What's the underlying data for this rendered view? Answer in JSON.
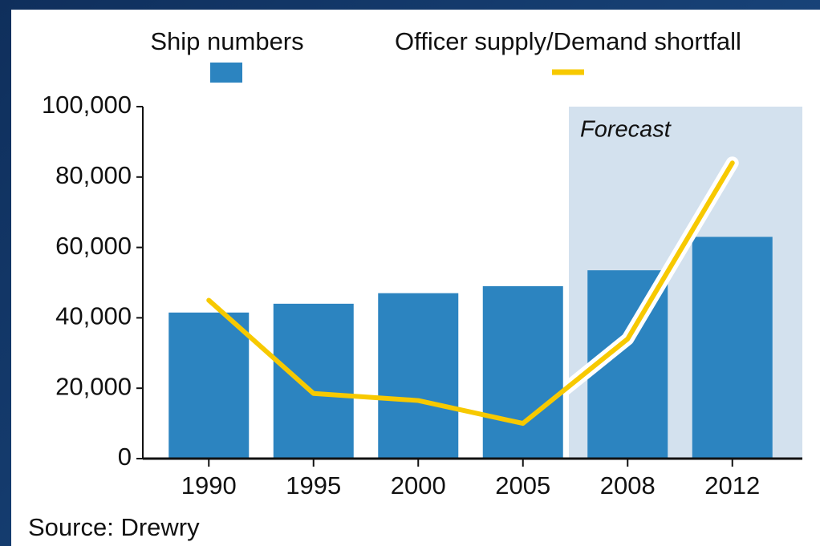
{
  "chart_data": {
    "type": "bar",
    "legend": [
      "Ship numbers",
      "Officer supply/Demand shortfall"
    ],
    "categories": [
      "1990",
      "1995",
      "2000",
      "2005",
      "2008",
      "2012"
    ],
    "series": [
      {
        "name": "Ship numbers",
        "type": "bar",
        "color": "#2c84c0",
        "values": [
          41500,
          44000,
          47000,
          49000,
          53500,
          63000
        ]
      },
      {
        "name": "Officer supply/Demand shortfall",
        "type": "line",
        "color": "#f7c900",
        "values": [
          45000,
          18500,
          16500,
          10000,
          34000,
          84000
        ]
      }
    ],
    "ylim": [
      0,
      100000
    ],
    "yticks": [
      0,
      {
        "value": 20000,
        "label": "20,000"
      },
      {
        "value": 40000,
        "label": "40,000"
      },
      {
        "value": 60000,
        "label": "60,000"
      },
      {
        "value": 80000,
        "label": "80,000"
      },
      {
        "value": 100000,
        "label": "100,000"
      }
    ],
    "annotation": {
      "text": "Forecast",
      "start_category": "2008",
      "color": "#d3e1ee"
    },
    "source": "Source: Drewry"
  }
}
